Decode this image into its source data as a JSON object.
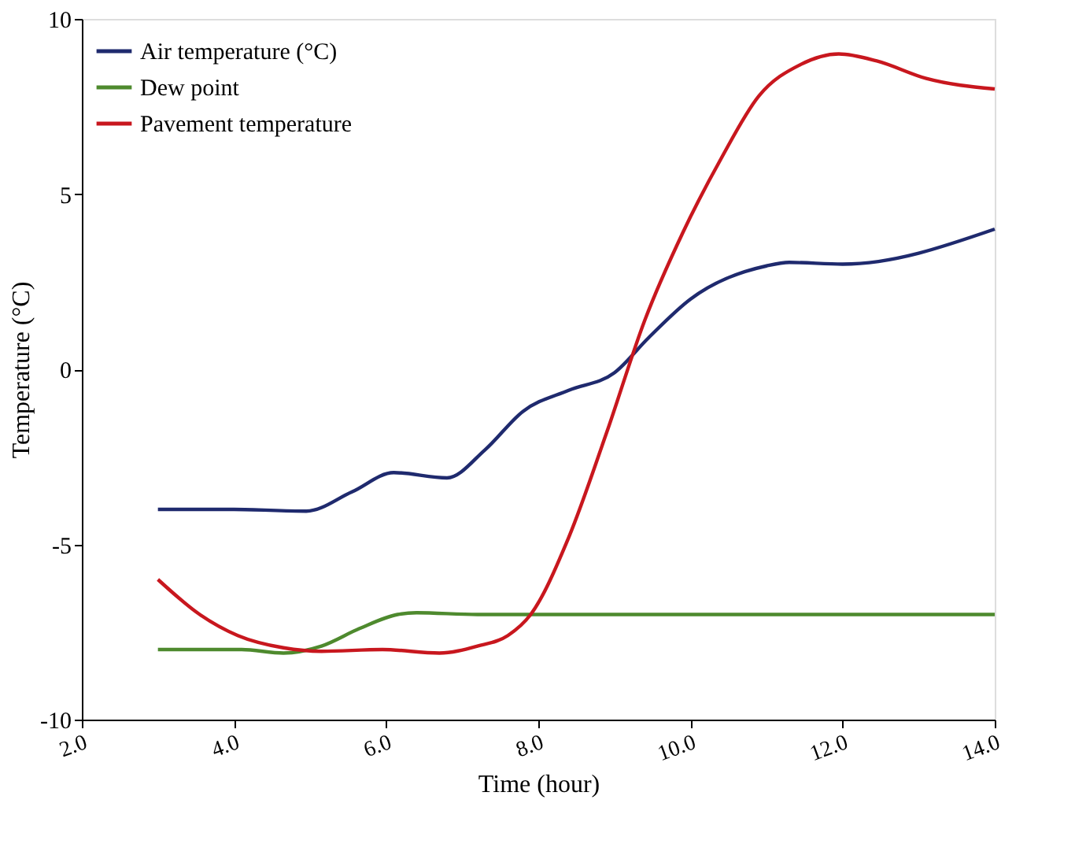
{
  "chart_data": {
    "type": "line",
    "xlabel": "Time (hour)",
    "ylabel": "Temperature (°C)",
    "xlim": [
      2,
      14
    ],
    "ylim": [
      -10,
      10
    ],
    "xticks": [
      {
        "value": 2,
        "label": "2.0"
      },
      {
        "value": 4,
        "label": "4.0"
      },
      {
        "value": 6,
        "label": "6.0"
      },
      {
        "value": 8,
        "label": "8.0"
      },
      {
        "value": 10,
        "label": "10.0"
      },
      {
        "value": 12,
        "label": "12.0"
      },
      {
        "value": 14,
        "label": "14.0"
      }
    ],
    "yticks": [
      -10,
      -5,
      0,
      5,
      10
    ],
    "grid": false,
    "legend": "top left",
    "line_style": "solid",
    "marker": "none",
    "series": [
      {
        "name": "Air temperature (°C)",
        "color": "#1f2a6e",
        "x": [
          3,
          4,
          4.95,
          5.55,
          6.1,
          6.8,
          7.3,
          7.8,
          8.4,
          9.0,
          9.45,
          10.0,
          11.0,
          11.3,
          12.0,
          14.0
        ],
        "values": [
          -4,
          -4,
          -4.05,
          -3.5,
          -2.95,
          -3.1,
          -2.3,
          -1.2,
          -0.6,
          -0.1,
          0.9,
          2.0,
          2.95,
          3.05,
          3.0,
          4.0
        ]
      },
      {
        "name": "Dew point",
        "color": "#4e8a2e",
        "x": [
          3,
          4.1,
          4.65,
          5.15,
          5.65,
          6.15,
          6.4,
          7.2,
          14.0
        ],
        "values": [
          -8,
          -8,
          -8.1,
          -7.9,
          -7.4,
          -7.0,
          -6.95,
          -7,
          -7
        ]
      },
      {
        "name": "Pavement temperature",
        "color": "#c8171e",
        "x": [
          3,
          3.55,
          4.05,
          4.65,
          5.15,
          5.95,
          6.7,
          7.2,
          7.6,
          7.9,
          8.4,
          8.9,
          9.4,
          9.9,
          10.4,
          10.9,
          11.45,
          11.95,
          12.45,
          13.1,
          14.0
        ],
        "values": [
          -6,
          -7,
          -7.6,
          -7.95,
          -8.05,
          -8,
          -8.1,
          -7.9,
          -7.6,
          -7,
          -4.8,
          -1.8,
          1.4,
          3.9,
          6.0,
          7.8,
          8.7,
          9.0,
          8.8,
          8.3,
          8.0
        ]
      }
    ]
  }
}
